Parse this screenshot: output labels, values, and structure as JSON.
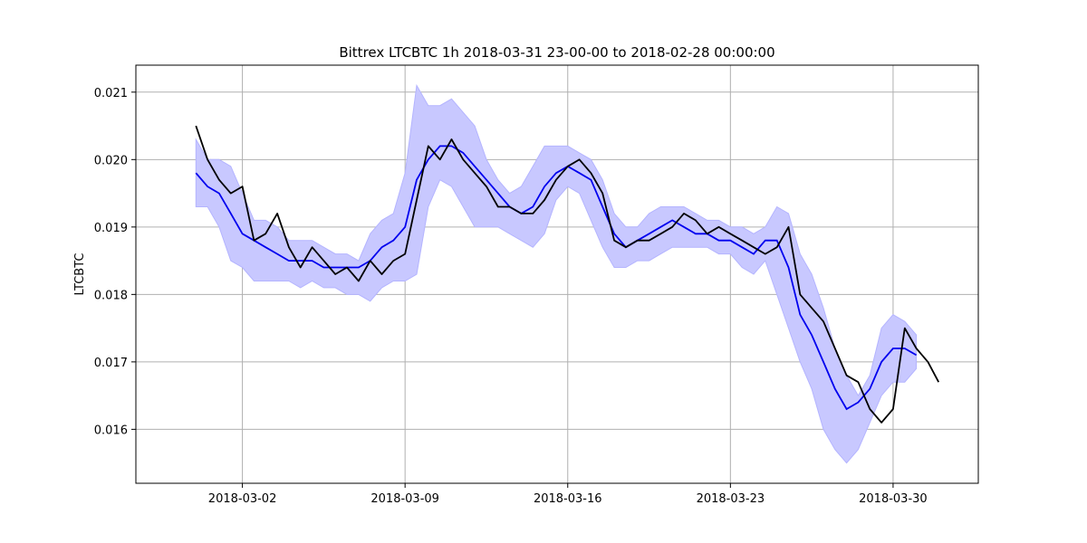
{
  "chart_data": {
    "type": "line",
    "title": "Bittrex LTCBTC 1h 2018-03-31 23-00-00 to 2018-02-28 00:00:00",
    "xlabel": "",
    "ylabel": "LTCBTC",
    "x_ticks": [
      "2018-03-02",
      "2018-03-09",
      "2018-03-16",
      "2018-03-23",
      "2018-03-30"
    ],
    "y_ticks": [
      "0.016",
      "0.017",
      "0.018",
      "0.019",
      "0.020",
      "0.021"
    ],
    "xlim": [
      "2018-02-25 10:00",
      "2018-04-02 16:00"
    ],
    "ylim": [
      0.0152,
      0.0214
    ],
    "grid": true,
    "colors": {
      "price": "#000000",
      "moving_average": "#0000ee",
      "band_fill": "#c8c8ff",
      "band_edge": "#b4b4ff",
      "grid": "#b0b0b0"
    },
    "series": [
      {
        "role": "price",
        "x": [
          "2018-02-28 00:00",
          "2018-02-28 12:00",
          "2018-03-01 00:00",
          "2018-03-01 12:00",
          "2018-03-02 00:00",
          "2018-03-02 12:00",
          "2018-03-03 00:00",
          "2018-03-03 12:00",
          "2018-03-04 00:00",
          "2018-03-04 12:00",
          "2018-03-05 00:00",
          "2018-03-05 12:00",
          "2018-03-06 00:00",
          "2018-03-06 12:00",
          "2018-03-07 00:00",
          "2018-03-07 12:00",
          "2018-03-08 00:00",
          "2018-03-08 12:00",
          "2018-03-09 00:00",
          "2018-03-09 12:00",
          "2018-03-10 00:00",
          "2018-03-10 12:00",
          "2018-03-11 00:00",
          "2018-03-11 12:00",
          "2018-03-12 00:00",
          "2018-03-12 12:00",
          "2018-03-13 00:00",
          "2018-03-13 12:00",
          "2018-03-14 00:00",
          "2018-03-14 12:00",
          "2018-03-15 00:00",
          "2018-03-15 12:00",
          "2018-03-16 00:00",
          "2018-03-16 12:00",
          "2018-03-17 00:00",
          "2018-03-17 12:00",
          "2018-03-18 00:00",
          "2018-03-18 12:00",
          "2018-03-19 00:00",
          "2018-03-19 12:00",
          "2018-03-20 00:00",
          "2018-03-20 12:00",
          "2018-03-21 00:00",
          "2018-03-21 12:00",
          "2018-03-22 00:00",
          "2018-03-22 12:00",
          "2018-03-23 00:00",
          "2018-03-23 12:00",
          "2018-03-24 00:00",
          "2018-03-24 12:00",
          "2018-03-25 00:00",
          "2018-03-25 12:00",
          "2018-03-26 00:00",
          "2018-03-26 12:00",
          "2018-03-27 00:00",
          "2018-03-27 12:00",
          "2018-03-28 00:00",
          "2018-03-28 12:00",
          "2018-03-29 00:00",
          "2018-03-29 12:00",
          "2018-03-30 00:00",
          "2018-03-30 12:00",
          "2018-03-31 00:00",
          "2018-03-31 12:00",
          "2018-03-31 23:00"
        ],
        "y": [
          0.0205,
          0.02,
          0.0197,
          0.0195,
          0.0196,
          0.0188,
          0.0189,
          0.0192,
          0.0187,
          0.0184,
          0.0187,
          0.0185,
          0.0183,
          0.0184,
          0.0182,
          0.0185,
          0.0183,
          0.0185,
          0.0186,
          0.0194,
          0.0202,
          0.02,
          0.0203,
          0.02,
          0.0198,
          0.0196,
          0.0193,
          0.0193,
          0.0192,
          0.0192,
          0.0194,
          0.0197,
          0.0199,
          0.02,
          0.0198,
          0.0195,
          0.0188,
          0.0187,
          0.0188,
          0.0188,
          0.0189,
          0.019,
          0.0192,
          0.0191,
          0.0189,
          0.019,
          0.0189,
          0.0188,
          0.0187,
          0.0186,
          0.0187,
          0.019,
          0.018,
          0.0178,
          0.0176,
          0.0172,
          0.0168,
          0.0167,
          0.0163,
          0.0161,
          0.0163,
          0.0175,
          0.0172,
          0.017,
          0.0167
        ]
      },
      {
        "role": "moving_average",
        "x": [
          "2018-02-28 00:00",
          "2018-02-28 12:00",
          "2018-03-01 00:00",
          "2018-03-01 12:00",
          "2018-03-02 00:00",
          "2018-03-02 12:00",
          "2018-03-03 00:00",
          "2018-03-03 12:00",
          "2018-03-04 00:00",
          "2018-03-04 12:00",
          "2018-03-05 00:00",
          "2018-03-05 12:00",
          "2018-03-06 00:00",
          "2018-03-06 12:00",
          "2018-03-07 00:00",
          "2018-03-07 12:00",
          "2018-03-08 00:00",
          "2018-03-08 12:00",
          "2018-03-09 00:00",
          "2018-03-09 12:00",
          "2018-03-10 00:00",
          "2018-03-10 12:00",
          "2018-03-11 00:00",
          "2018-03-11 12:00",
          "2018-03-12 00:00",
          "2018-03-12 12:00",
          "2018-03-13 00:00",
          "2018-03-13 12:00",
          "2018-03-14 00:00",
          "2018-03-14 12:00",
          "2018-03-15 00:00",
          "2018-03-15 12:00",
          "2018-03-16 00:00",
          "2018-03-16 12:00",
          "2018-03-17 00:00",
          "2018-03-17 12:00",
          "2018-03-18 00:00",
          "2018-03-18 12:00",
          "2018-03-19 00:00",
          "2018-03-19 12:00",
          "2018-03-20 00:00",
          "2018-03-20 12:00",
          "2018-03-21 00:00",
          "2018-03-21 12:00",
          "2018-03-22 00:00",
          "2018-03-22 12:00",
          "2018-03-23 00:00",
          "2018-03-23 12:00",
          "2018-03-24 00:00",
          "2018-03-24 12:00",
          "2018-03-25 00:00",
          "2018-03-25 12:00",
          "2018-03-26 00:00",
          "2018-03-26 12:00",
          "2018-03-27 00:00",
          "2018-03-27 12:00",
          "2018-03-28 00:00",
          "2018-03-28 12:00",
          "2018-03-29 00:00",
          "2018-03-29 12:00",
          "2018-03-30 00:00",
          "2018-03-30 12:00",
          "2018-03-31 00:00"
        ],
        "y": [
          0.0198,
          0.0196,
          0.0195,
          0.0192,
          0.0189,
          0.0188,
          0.0187,
          0.0186,
          0.0185,
          0.0185,
          0.0185,
          0.0184,
          0.0184,
          0.0184,
          0.0184,
          0.0185,
          0.0187,
          0.0188,
          0.019,
          0.0197,
          0.02,
          0.0202,
          0.0202,
          0.0201,
          0.0199,
          0.0197,
          0.0195,
          0.0193,
          0.0192,
          0.0193,
          0.0196,
          0.0198,
          0.0199,
          0.0198,
          0.0197,
          0.0193,
          0.0189,
          0.0187,
          0.0188,
          0.0189,
          0.019,
          0.0191,
          0.019,
          0.0189,
          0.0189,
          0.0188,
          0.0188,
          0.0187,
          0.0186,
          0.0188,
          0.0188,
          0.0184,
          0.0177,
          0.0174,
          0.017,
          0.0166,
          0.0163,
          0.0164,
          0.0166,
          0.017,
          0.0172,
          0.0172,
          0.0171
        ]
      },
      {
        "role": "band_upper",
        "x": [
          "2018-02-28 00:00",
          "2018-02-28 12:00",
          "2018-03-01 00:00",
          "2018-03-01 12:00",
          "2018-03-02 00:00",
          "2018-03-02 12:00",
          "2018-03-03 00:00",
          "2018-03-03 12:00",
          "2018-03-04 00:00",
          "2018-03-04 12:00",
          "2018-03-05 00:00",
          "2018-03-05 12:00",
          "2018-03-06 00:00",
          "2018-03-06 12:00",
          "2018-03-07 00:00",
          "2018-03-07 12:00",
          "2018-03-08 00:00",
          "2018-03-08 12:00",
          "2018-03-09 00:00",
          "2018-03-09 12:00",
          "2018-03-10 00:00",
          "2018-03-10 12:00",
          "2018-03-11 00:00",
          "2018-03-11 12:00",
          "2018-03-12 00:00",
          "2018-03-12 12:00",
          "2018-03-13 00:00",
          "2018-03-13 12:00",
          "2018-03-14 00:00",
          "2018-03-14 12:00",
          "2018-03-15 00:00",
          "2018-03-15 12:00",
          "2018-03-16 00:00",
          "2018-03-16 12:00",
          "2018-03-17 00:00",
          "2018-03-17 12:00",
          "2018-03-18 00:00",
          "2018-03-18 12:00",
          "2018-03-19 00:00",
          "2018-03-19 12:00",
          "2018-03-20 00:00",
          "2018-03-20 12:00",
          "2018-03-21 00:00",
          "2018-03-21 12:00",
          "2018-03-22 00:00",
          "2018-03-22 12:00",
          "2018-03-23 00:00",
          "2018-03-23 12:00",
          "2018-03-24 00:00",
          "2018-03-24 12:00",
          "2018-03-25 00:00",
          "2018-03-25 12:00",
          "2018-03-26 00:00",
          "2018-03-26 12:00",
          "2018-03-27 00:00",
          "2018-03-27 12:00",
          "2018-03-28 00:00",
          "2018-03-28 12:00",
          "2018-03-29 00:00",
          "2018-03-29 12:00",
          "2018-03-30 00:00",
          "2018-03-30 12:00",
          "2018-03-31 00:00"
        ],
        "y": [
          0.0203,
          0.02,
          0.02,
          0.0199,
          0.0195,
          0.0191,
          0.0191,
          0.019,
          0.0188,
          0.0188,
          0.0188,
          0.0187,
          0.0186,
          0.0186,
          0.0185,
          0.0189,
          0.0191,
          0.0192,
          0.0198,
          0.0211,
          0.0208,
          0.0208,
          0.0209,
          0.0207,
          0.0205,
          0.02,
          0.0197,
          0.0195,
          0.0196,
          0.0199,
          0.0202,
          0.0202,
          0.0202,
          0.0201,
          0.02,
          0.0197,
          0.0192,
          0.019,
          0.019,
          0.0192,
          0.0193,
          0.0193,
          0.0193,
          0.0192,
          0.0191,
          0.0191,
          0.019,
          0.019,
          0.0189,
          0.019,
          0.0193,
          0.0192,
          0.0186,
          0.0183,
          0.0178,
          0.0172,
          0.0168,
          0.0165,
          0.0168,
          0.0175,
          0.0177,
          0.0176,
          0.0174
        ]
      },
      {
        "role": "band_lower",
        "x": [
          "2018-02-28 00:00",
          "2018-02-28 12:00",
          "2018-03-01 00:00",
          "2018-03-01 12:00",
          "2018-03-02 00:00",
          "2018-03-02 12:00",
          "2018-03-03 00:00",
          "2018-03-03 12:00",
          "2018-03-04 00:00",
          "2018-03-04 12:00",
          "2018-03-05 00:00",
          "2018-03-05 12:00",
          "2018-03-06 00:00",
          "2018-03-06 12:00",
          "2018-03-07 00:00",
          "2018-03-07 12:00",
          "2018-03-08 00:00",
          "2018-03-08 12:00",
          "2018-03-09 00:00",
          "2018-03-09 12:00",
          "2018-03-10 00:00",
          "2018-03-10 12:00",
          "2018-03-11 00:00",
          "2018-03-11 12:00",
          "2018-03-12 00:00",
          "2018-03-12 12:00",
          "2018-03-13 00:00",
          "2018-03-13 12:00",
          "2018-03-14 00:00",
          "2018-03-14 12:00",
          "2018-03-15 00:00",
          "2018-03-15 12:00",
          "2018-03-16 00:00",
          "2018-03-16 12:00",
          "2018-03-17 00:00",
          "2018-03-17 12:00",
          "2018-03-18 00:00",
          "2018-03-18 12:00",
          "2018-03-19 00:00",
          "2018-03-19 12:00",
          "2018-03-20 00:00",
          "2018-03-20 12:00",
          "2018-03-21 00:00",
          "2018-03-21 12:00",
          "2018-03-22 00:00",
          "2018-03-22 12:00",
          "2018-03-23 00:00",
          "2018-03-23 12:00",
          "2018-03-24 00:00",
          "2018-03-24 12:00",
          "2018-03-25 00:00",
          "2018-03-25 12:00",
          "2018-03-26 00:00",
          "2018-03-26 12:00",
          "2018-03-27 00:00",
          "2018-03-27 12:00",
          "2018-03-28 00:00",
          "2018-03-28 12:00",
          "2018-03-29 00:00",
          "2018-03-29 12:00",
          "2018-03-30 00:00",
          "2018-03-30 12:00",
          "2018-03-31 00:00"
        ],
        "y": [
          0.0193,
          0.0193,
          0.019,
          0.0185,
          0.0184,
          0.0182,
          0.0182,
          0.0182,
          0.0182,
          0.0181,
          0.0182,
          0.0181,
          0.0181,
          0.018,
          0.018,
          0.0179,
          0.0181,
          0.0182,
          0.0182,
          0.0183,
          0.0193,
          0.0197,
          0.0196,
          0.0193,
          0.019,
          0.019,
          0.019,
          0.0189,
          0.0188,
          0.0187,
          0.0189,
          0.0194,
          0.0196,
          0.0195,
          0.0191,
          0.0187,
          0.0184,
          0.0184,
          0.0185,
          0.0185,
          0.0186,
          0.0187,
          0.0187,
          0.0187,
          0.0187,
          0.0186,
          0.0186,
          0.0184,
          0.0183,
          0.0185,
          0.018,
          0.0175,
          0.017,
          0.0166,
          0.016,
          0.0157,
          0.0155,
          0.0157,
          0.0161,
          0.0165,
          0.0167,
          0.0167,
          0.0169
        ]
      }
    ]
  }
}
